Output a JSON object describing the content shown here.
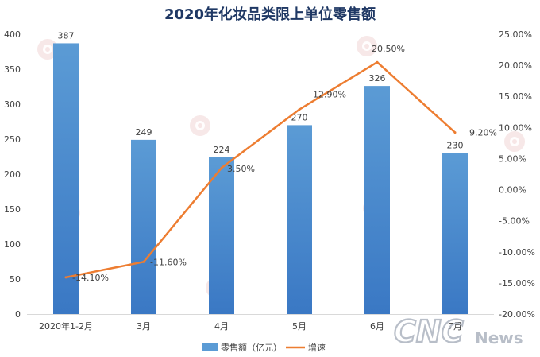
{
  "chart_data": {
    "type": "bar",
    "title": "2020年化妆品类限上单位零售额",
    "categories": [
      "2020年1-2月",
      "3月",
      "4月",
      "5月",
      "6月",
      "7月"
    ],
    "series": [
      {
        "name": "零售额（亿元）",
        "kind": "bar",
        "axis": "left",
        "color": "#5b9bd5",
        "values": [
          387,
          249,
          224,
          270,
          326,
          230
        ],
        "labels": [
          "387",
          "249",
          "224",
          "270",
          "326",
          "230"
        ]
      },
      {
        "name": "增速",
        "kind": "line",
        "axis": "right",
        "color": "#ed7d31",
        "values": [
          -14.1,
          -11.6,
          3.5,
          12.9,
          20.5,
          9.2
        ],
        "labels": [
          "-14.10%",
          "-11.60%",
          "3.50%",
          "12.90%",
          "20.50%",
          "9.20%"
        ]
      }
    ],
    "y_left": {
      "min": 0,
      "max": 400,
      "step": 50,
      "ticks": [
        "0",
        "50",
        "100",
        "150",
        "200",
        "250",
        "300",
        "350",
        "400"
      ]
    },
    "y_right": {
      "min": -20,
      "max": 25,
      "step": 5,
      "ticks": [
        "-20.00%",
        "-15.00%",
        "-10.00%",
        "-5.00%",
        "0.00%",
        "5.00%",
        "10.00%",
        "15.00%",
        "20.00%",
        "25.00%"
      ]
    },
    "grid": false,
    "legend_position": "bottom"
  },
  "watermark": {
    "text": "青眼",
    "color": "#c0504d"
  },
  "logo": {
    "main": "CNC",
    "sub": "News",
    "color": "#b8bec8"
  }
}
